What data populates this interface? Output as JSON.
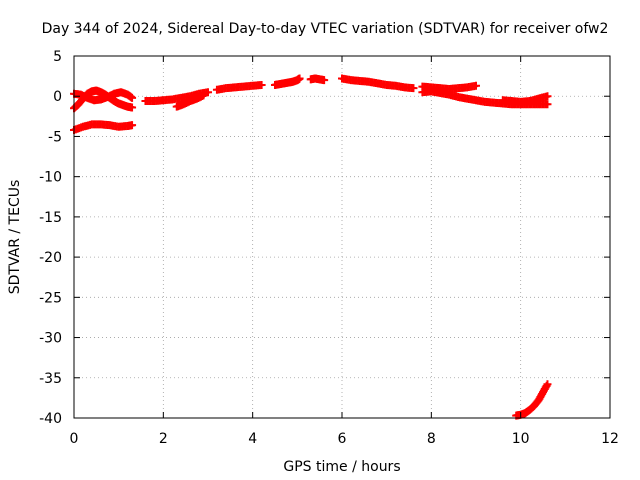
{
  "chart_data": {
    "type": "scatter",
    "title": "Day 344 of 2024, Sidereal Day-to-day VTEC variation (SDTVAR) for receiver ofw2",
    "xlabel": "GPS time / hours",
    "ylabel": "SDTVAR / TECUs",
    "xlim": [
      0,
      12
    ],
    "ylim": [
      -40,
      5
    ],
    "xticks": [
      0,
      2,
      4,
      6,
      8,
      10,
      12
    ],
    "yticks": [
      5,
      0,
      -5,
      -10,
      -15,
      -20,
      -25,
      -30,
      -35,
      -40
    ],
    "grid": true,
    "marker": "plus",
    "series": [
      {
        "name": "track-1",
        "color": "#ff0000",
        "x": [
          0.0,
          0.1,
          0.2,
          0.3,
          0.4,
          0.5,
          0.6,
          0.7,
          0.8,
          0.9,
          1.0,
          1.1,
          1.2,
          1.3
        ],
        "y": [
          -1.5,
          -1.0,
          -0.3,
          0.3,
          0.6,
          0.7,
          0.5,
          0.2,
          -0.2,
          -0.6,
          -0.9,
          -1.1,
          -1.3,
          -1.4
        ]
      },
      {
        "name": "track-2",
        "color": "#ff0000",
        "x": [
          0.0,
          0.15,
          0.3,
          0.45,
          0.6,
          0.75,
          0.9,
          1.05,
          1.2,
          1.3
        ],
        "y": [
          0.3,
          0.2,
          -0.2,
          -0.5,
          -0.4,
          -0.1,
          0.3,
          0.5,
          0.2,
          -0.2
        ]
      },
      {
        "name": "track-3",
        "color": "#ff0000",
        "x": [
          0.0,
          0.2,
          0.4,
          0.6,
          0.8,
          1.0,
          1.2,
          1.3
        ],
        "y": [
          -4.2,
          -3.8,
          -3.5,
          -3.5,
          -3.6,
          -3.8,
          -3.7,
          -3.6
        ]
      },
      {
        "name": "track-4",
        "color": "#ff0000",
        "x": [
          1.6,
          1.8,
          2.0,
          2.2,
          2.4,
          2.6,
          2.8,
          3.0
        ],
        "y": [
          -0.6,
          -0.6,
          -0.5,
          -0.4,
          -0.2,
          0.0,
          0.3,
          0.5
        ]
      },
      {
        "name": "track-5",
        "color": "#ff0000",
        "x": [
          2.3,
          2.45,
          2.6,
          2.75,
          2.9
        ],
        "y": [
          -1.3,
          -1.0,
          -0.6,
          -0.3,
          0.1
        ]
      },
      {
        "name": "track-6",
        "color": "#ff0000",
        "x": [
          3.2,
          3.4,
          3.6,
          3.8,
          4.0,
          4.2
        ],
        "y": [
          0.8,
          1.0,
          1.1,
          1.2,
          1.3,
          1.4
        ]
      },
      {
        "name": "track-7",
        "color": "#ff0000",
        "x": [
          4.5,
          4.6,
          4.7,
          4.8,
          4.9,
          5.0,
          5.05
        ],
        "y": [
          1.4,
          1.5,
          1.6,
          1.7,
          1.8,
          2.0,
          2.2
        ]
      },
      {
        "name": "track-8",
        "color": "#ff0000",
        "x": [
          5.3,
          5.4,
          5.5,
          5.6
        ],
        "y": [
          2.1,
          2.2,
          2.1,
          2.0
        ]
      },
      {
        "name": "track-9",
        "color": "#ff0000",
        "x": [
          6.0,
          6.2,
          6.4,
          6.6,
          6.8,
          7.0,
          7.2,
          7.4,
          7.6
        ],
        "y": [
          2.2,
          2.0,
          1.9,
          1.8,
          1.6,
          1.4,
          1.3,
          1.1,
          1.0
        ]
      },
      {
        "name": "track-10",
        "color": "#ff0000",
        "x": [
          7.8,
          8.0,
          8.2,
          8.4,
          8.6,
          8.8,
          9.0
        ],
        "y": [
          1.2,
          1.1,
          1.0,
          0.9,
          1.0,
          1.1,
          1.3
        ]
      },
      {
        "name": "track-11",
        "color": "#ff0000",
        "x": [
          7.8,
          8.0,
          8.2,
          8.4,
          8.6,
          8.8,
          9.0,
          9.2,
          9.4,
          9.6,
          9.8,
          10.0,
          10.2,
          10.4,
          10.6
        ],
        "y": [
          0.5,
          0.6,
          0.4,
          0.2,
          -0.1,
          -0.3,
          -0.5,
          -0.7,
          -0.8,
          -0.9,
          -1.0,
          -1.0,
          -1.0,
          -1.0,
          -1.0
        ]
      },
      {
        "name": "track-12",
        "color": "#ff0000",
        "x": [
          9.6,
          9.8,
          10.0,
          10.2,
          10.4,
          10.6
        ],
        "y": [
          -0.5,
          -0.6,
          -0.7,
          -0.6,
          -0.3,
          0.0
        ]
      },
      {
        "name": "track-13",
        "color": "#ff0000",
        "x": [
          9.9,
          10.0,
          10.1,
          10.2,
          10.3,
          10.4,
          10.5,
          10.6
        ],
        "y": [
          -39.7,
          -39.6,
          -39.4,
          -39.0,
          -38.5,
          -37.8,
          -36.8,
          -35.8
        ]
      }
    ]
  }
}
